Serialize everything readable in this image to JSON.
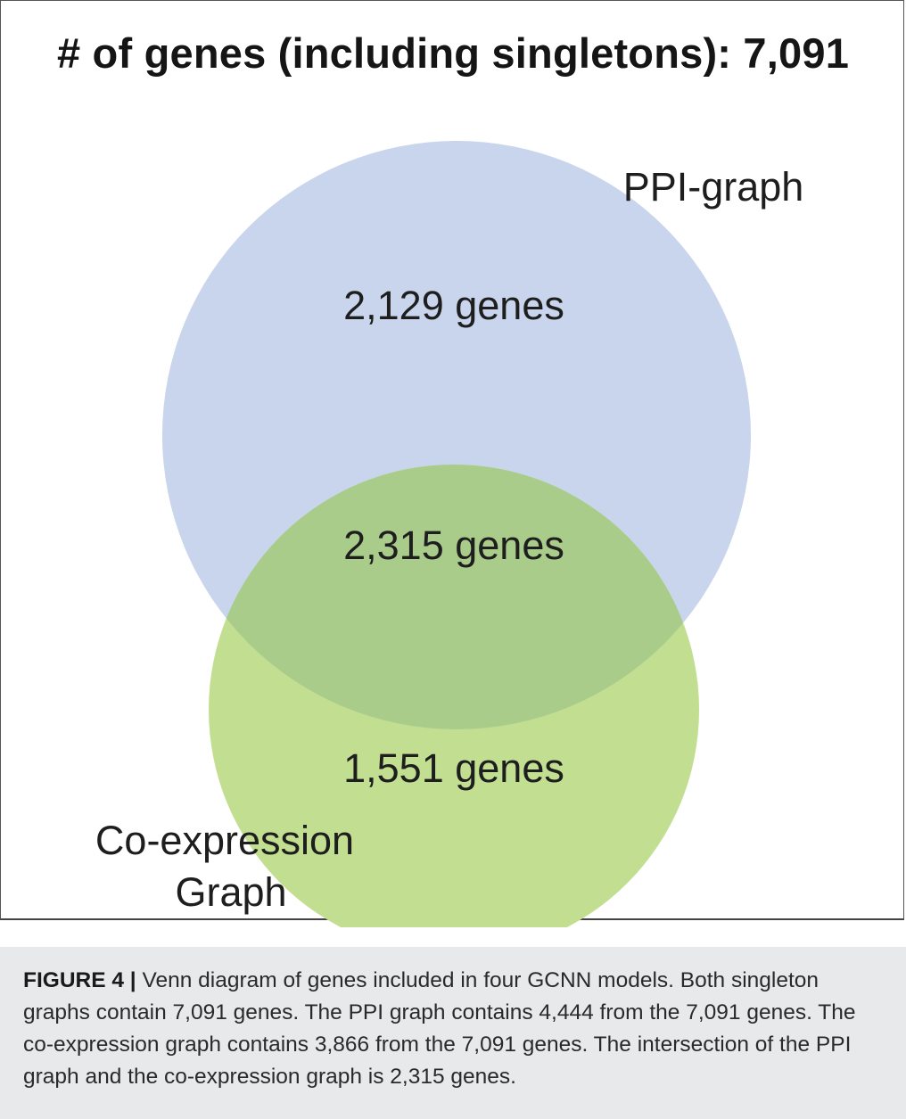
{
  "figure": {
    "title": "# of genes (including singletons): 7,091"
  },
  "venn": {
    "sets": [
      {
        "name": "PPI-graph",
        "color": "#c8d5ec"
      },
      {
        "name": "Co-expression Graph",
        "name_lines": [
          "Co-expression",
          "Graph"
        ],
        "color": "#c2df91"
      }
    ],
    "regions": {
      "ppi_only": "2,129 genes",
      "intersection": "2,315 genes",
      "coexpression_only": "1,551 genes"
    },
    "intersection_color": "#a9cc8b"
  },
  "caption": {
    "label": "FIGURE 4 |",
    "text": " Venn diagram of genes included in four GCNN models. Both singleton graphs contain 7,091 genes. The PPI graph contains 4,444 from the 7,091 genes. The co-expression graph contains 3,866 from the 7,091 genes. The intersection of the PPI graph and the co-expression graph is 2,315 genes."
  }
}
